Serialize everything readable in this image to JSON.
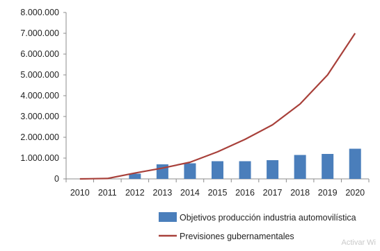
{
  "chart_data": {
    "type": "bar+line",
    "categories": [
      "2010",
      "2011",
      "2012",
      "2013",
      "2014",
      "2015",
      "2016",
      "2017",
      "2018",
      "2019",
      "2020"
    ],
    "series": [
      {
        "name": "Objetivos producción industria automovilística",
        "kind": "bar",
        "color": "#4a7ebb",
        "values": [
          0,
          0,
          250000,
          700000,
          750000,
          850000,
          850000,
          900000,
          1150000,
          1200000,
          1450000
        ]
      },
      {
        "name": "Previsiones gubernamentales",
        "kind": "line",
        "color": "#a8403a",
        "values": [
          0,
          20000,
          280000,
          520000,
          800000,
          1300000,
          1900000,
          2600000,
          3600000,
          5000000,
          7000000
        ]
      }
    ],
    "yticks": [
      "0",
      "1.000.000",
      "2.000.000",
      "3.000.000",
      "4.000.000",
      "5.000.000",
      "6.000.000",
      "7.000.000",
      "8.000.000"
    ],
    "ylim": [
      0,
      8000000
    ],
    "grid": false,
    "legend_position": "bottom-right"
  },
  "watermark": "Activar Wi"
}
